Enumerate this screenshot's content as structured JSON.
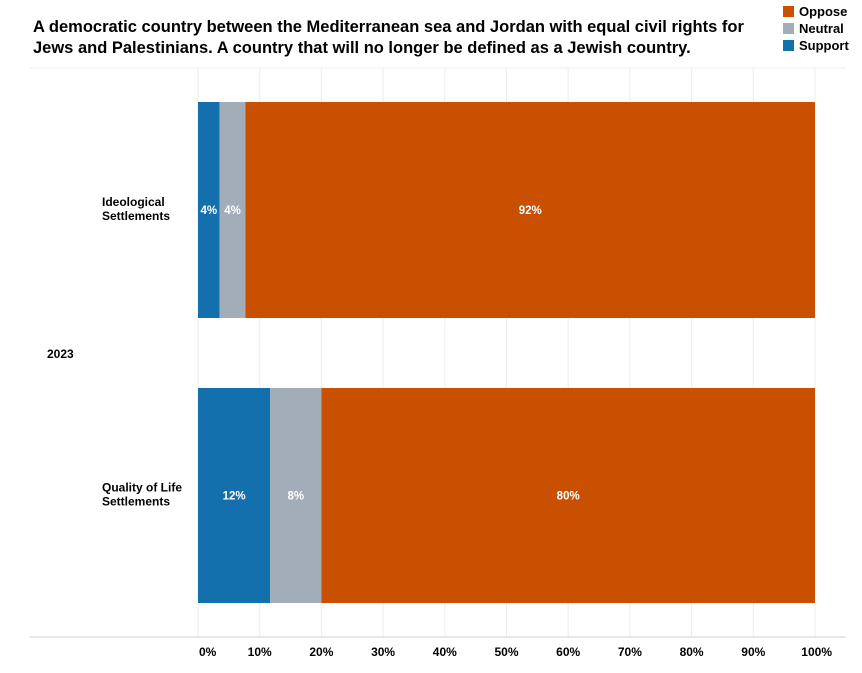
{
  "chart_data": {
    "type": "bar",
    "orientation": "horizontal",
    "stacked": true,
    "title": "A democratic country between the Mediterranean sea and Jordan with equal civil rights for Jews and Palestinians. A country that will no longer be defined as a Jewish country.",
    "group_label": "2023",
    "categories": [
      [
        "Ideological",
        "Settlements"
      ],
      [
        "Quality of Life",
        "Settlements"
      ]
    ],
    "series": [
      {
        "name": "Support",
        "color": "#1470ac",
        "values": [
          3.5,
          11.7
        ],
        "labels": [
          "4%",
          "12%"
        ]
      },
      {
        "name": "Neutral",
        "color": "#a3adb9",
        "values": [
          4.2,
          8.3
        ],
        "labels": [
          "4%",
          "8%"
        ]
      },
      {
        "name": "Oppose",
        "color": "#c95000",
        "values": [
          92.3,
          80.0
        ],
        "labels": [
          "92%",
          "80%"
        ]
      }
    ],
    "legend_order": [
      "Oppose",
      "Neutral",
      "Support"
    ],
    "legend_position": "top-right",
    "xlim": [
      0,
      100
    ],
    "xticks": [
      "0%",
      "10%",
      "20%",
      "30%",
      "40%",
      "50%",
      "60%",
      "70%",
      "80%",
      "90%",
      "100%"
    ],
    "grid": true
  }
}
